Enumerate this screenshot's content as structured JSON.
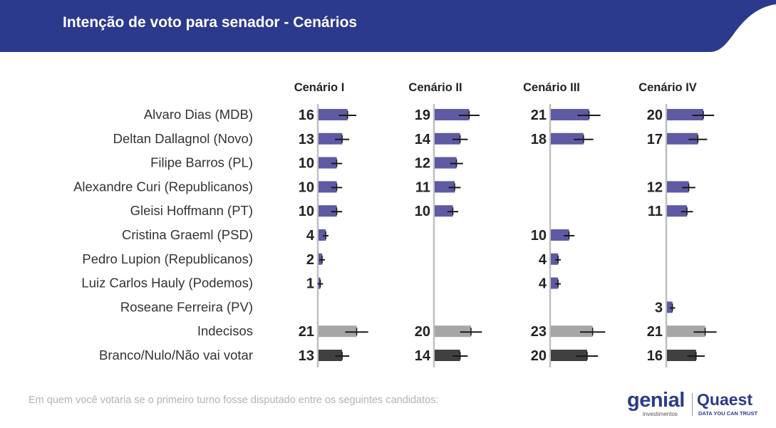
{
  "header": {
    "title": "Intenção de voto para senador - Cenários",
    "band_color": "#2b3a8c"
  },
  "footnote": "Em quem você votaria se o primeiro turno fosse disputado entre os seguintes candidatos:",
  "logos": {
    "genial": {
      "word": "genial",
      "sub": "investimentos"
    },
    "quaest": {
      "word": "Quaest",
      "sub": "DATA YOU CAN TRUST"
    }
  },
  "colors": {
    "candidate": "#5e5aa3",
    "undecided": "#a6a6a6",
    "blank": "#404040",
    "error_bar": "#1a1a1a",
    "axis": "#bfbfbf",
    "label": "#333333",
    "value": "#222222"
  },
  "chart_data": {
    "type": "bar",
    "orientation": "horizontal",
    "error_bars": true,
    "categories": [
      "Alvaro Dias (MDB)",
      "Deltan Dallagnol (Novo)",
      "Filipe Barros (PL)",
      "Alexandre Curi (Republicanos)",
      "Gleisi Hoffmann (PT)",
      "Cristina Graeml (PSD)",
      "Pedro Lupion (Republicanos)",
      "Luiz Carlos Hauly (Podemos)",
      "Roseane Ferreira (PV)",
      "Indecisos",
      "Branco/Nulo/Não vai votar"
    ],
    "series": [
      {
        "name": "Cenário I",
        "values": [
          16,
          13,
          10,
          10,
          10,
          4,
          2,
          1,
          null,
          21,
          13
        ]
      },
      {
        "name": "Cenário II",
        "values": [
          19,
          14,
          12,
          11,
          10,
          null,
          null,
          null,
          null,
          20,
          14
        ]
      },
      {
        "name": "Cenário III",
        "values": [
          21,
          18,
          null,
          null,
          null,
          10,
          4,
          4,
          null,
          23,
          20
        ]
      },
      {
        "name": "Cenário IV",
        "values": [
          20,
          17,
          null,
          12,
          11,
          null,
          null,
          null,
          3,
          21,
          16
        ]
      }
    ]
  }
}
